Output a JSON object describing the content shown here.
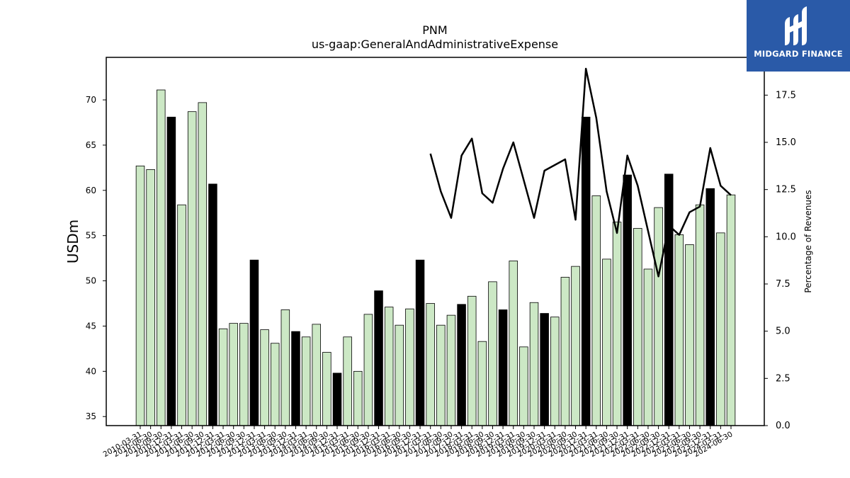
{
  "chart_data": {
    "type": "bar",
    "title": "PNM",
    "subtitle": "us-gaap:GeneralAndAdministrativeExpense",
    "ylabel": "USDm",
    "y2label": "Percentage of Revenues",
    "ylim": [
      34,
      74.7
    ],
    "y2lim": [
      0,
      19.5
    ],
    "yticks": [
      35,
      40,
      45,
      50,
      55,
      60,
      65,
      70
    ],
    "y2ticks": [
      "0.0",
      "2.5",
      "5.0",
      "7.5",
      "10.0",
      "12.5",
      "15.0",
      "17.5"
    ],
    "categories": [
      "2010-03-31",
      "2010-06-30",
      "2010-09-30",
      "2010-12-31",
      "2011-03-31",
      "2011-06-30",
      "2011-09-30",
      "2011-12-31",
      "2012-03-31",
      "2012-06-30",
      "2012-09-30",
      "2012-12-31",
      "2013-03-31",
      "2013-06-30",
      "2013-09-30",
      "2013-12-31",
      "2014-03-31",
      "2014-06-30",
      "2014-09-30",
      "2014-12-31",
      "2015-03-31",
      "2015-06-30",
      "2015-09-30",
      "2015-12-31",
      "2016-03-31",
      "2016-06-30",
      "2016-09-30",
      "2016-12-31",
      "2017-03-31",
      "2017-06-30",
      "2017-09-30",
      "2017-12-31",
      "2018-03-31",
      "2018-06-30",
      "2018-09-30",
      "2018-12-31",
      "2019-03-31",
      "2019-06-30",
      "2019-09-30",
      "2019-12-31",
      "2020-03-31",
      "2020-06-30",
      "2020-09-30",
      "2020-12-31",
      "2021-03-31",
      "2021-06-30",
      "2021-09-30",
      "2021-12-31",
      "2022-03-31",
      "2022-06-30",
      "2022-09-30",
      "2022-12-31",
      "2023-03-31",
      "2023-06-30",
      "2023-09-30",
      "2023-12-31",
      "2024-03-31",
      "2024-06-30"
    ],
    "series": [
      {
        "role": "bars",
        "values": [
          62.7,
          62.3,
          71.1,
          68.1,
          58.4,
          68.7,
          69.7,
          60.7,
          44.7,
          45.3,
          45.3,
          52.3,
          44.6,
          43.1,
          46.8,
          44.4,
          43.8,
          45.2,
          42.1,
          39.8,
          43.8,
          40.0,
          46.3,
          48.9,
          47.1,
          45.1,
          46.9,
          52.3,
          47.5,
          45.1,
          46.2,
          47.4,
          48.3,
          43.3,
          49.9,
          46.8,
          52.2,
          42.7,
          47.6,
          46.4,
          46.0,
          50.4,
          51.6,
          68.1,
          59.4,
          52.4,
          56.5,
          61.7,
          55.8,
          51.3,
          58.1,
          61.8,
          55.1,
          54.0,
          58.4,
          60.2,
          55.3,
          59.5
        ],
        "highlight": [
          false,
          false,
          false,
          true,
          false,
          false,
          false,
          true,
          false,
          false,
          false,
          true,
          false,
          false,
          false,
          true,
          false,
          false,
          false,
          true,
          false,
          false,
          false,
          true,
          false,
          false,
          false,
          true,
          false,
          false,
          false,
          true,
          false,
          false,
          false,
          true,
          false,
          false,
          false,
          true,
          false,
          false,
          false,
          true,
          false,
          false,
          false,
          true,
          false,
          false,
          false,
          true,
          false,
          false,
          false,
          true,
          false,
          false
        ]
      },
      {
        "role": "line",
        "axis": "right",
        "x_range": [
          "2016-12-31",
          "2024-06-30"
        ],
        "values": [
          null,
          null,
          null,
          null,
          null,
          null,
          null,
          null,
          null,
          null,
          null,
          null,
          null,
          null,
          null,
          null,
          null,
          null,
          null,
          null,
          null,
          null,
          null,
          null,
          null,
          null,
          null,
          null,
          14.4,
          12.4,
          11.0,
          14.3,
          15.2,
          12.3,
          11.8,
          13.6,
          15.0,
          13.0,
          11.0,
          13.5,
          13.8,
          14.1,
          10.9,
          18.9,
          16.3,
          12.4,
          10.2,
          14.3,
          12.7,
          10.3,
          7.9,
          10.6,
          10.1,
          11.3,
          11.6,
          14.7,
          12.7,
          12.2
        ]
      }
    ],
    "bar_colors": {
      "normal": "#cce8c5",
      "highlight": "#000000",
      "edge": "#000000"
    },
    "line_color": "#000000",
    "grid": false,
    "legend": "none"
  },
  "logo": {
    "text": "MIDGARD FINANCE",
    "bg": "#2a5aa8"
  }
}
